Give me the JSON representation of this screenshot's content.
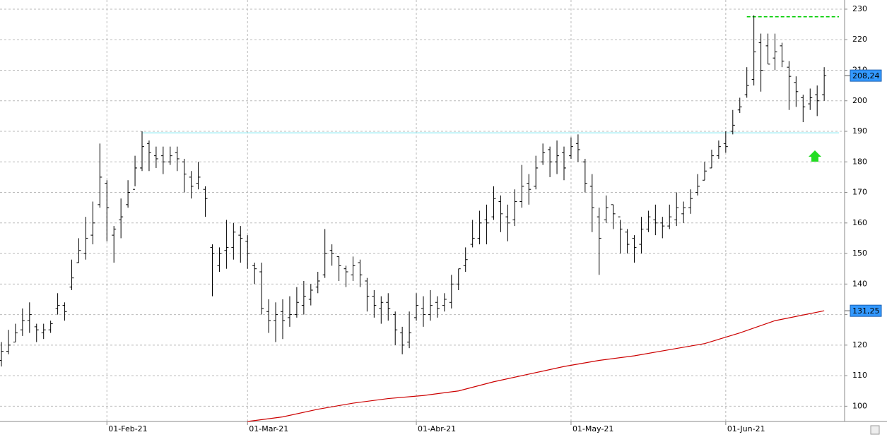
{
  "chart_data": {
    "type": "ohlc",
    "categories": [
      null,
      null,
      null,
      null,
      null,
      null,
      null,
      null,
      null,
      null,
      null,
      null,
      null,
      null,
      null,
      "01-Feb-21",
      null,
      null,
      null,
      null,
      null,
      null,
      null,
      null,
      null,
      null,
      null,
      null,
      null,
      null,
      null,
      null,
      null,
      null,
      null,
      "01-Mar-21",
      null,
      null,
      null,
      null,
      null,
      null,
      null,
      null,
      null,
      null,
      null,
      null,
      null,
      null,
      null,
      null,
      null,
      null,
      null,
      null,
      null,
      null,
      null,
      "01-Abr-21",
      null,
      null,
      null,
      null,
      null,
      null,
      null,
      null,
      null,
      null,
      null,
      null,
      null,
      null,
      null,
      null,
      null,
      null,
      null,
      null,
      null,
      "01-May-21",
      null,
      null,
      null,
      null,
      null,
      null,
      null,
      null,
      null,
      null,
      null,
      null,
      null,
      null,
      null,
      null,
      null,
      null,
      null,
      null,
      null,
      "01-Jun-21",
      null,
      null,
      null,
      null,
      null,
      null,
      null,
      null,
      null,
      null,
      null,
      null,
      null,
      null
    ],
    "open": [
      115,
      118,
      121,
      125,
      128,
      126,
      124,
      125,
      132,
      133,
      139,
      147,
      150,
      156,
      166,
      173,
      156,
      161,
      166,
      171,
      178,
      186,
      182,
      182,
      180,
      183,
      180,
      175,
      173,
      171,
      152,
      146,
      151,
      152,
      156,
      154,
      146,
      144,
      131,
      128,
      131,
      129,
      130,
      133,
      135,
      139,
      143,
      151,
      149,
      145,
      143,
      147,
      141,
      136,
      132,
      134,
      130,
      124,
      121,
      129,
      132,
      130,
      134,
      133,
      134,
      140,
      146,
      153,
      155,
      161,
      162,
      167,
      162,
      161,
      167,
      173,
      172,
      180,
      184,
      180,
      183,
      182,
      186,
      180,
      172,
      162,
      161,
      166,
      162,
      157,
      155,
      153,
      158,
      161,
      160,
      159,
      161,
      163,
      165,
      170,
      174,
      178,
      182,
      186,
      190,
      197,
      202,
      207,
      219,
      218,
      214,
      218,
      211,
      206,
      201,
      199,
      202,
      202
    ],
    "high": [
      121,
      125,
      127,
      132,
      134,
      127,
      127,
      128,
      137,
      134,
      148,
      155,
      162,
      167,
      186,
      174,
      159,
      168,
      174,
      182,
      190,
      187,
      185,
      185,
      185,
      185,
      181,
      177,
      180,
      172,
      153,
      152,
      161,
      160,
      159,
      156,
      147,
      147,
      135,
      134,
      135,
      136,
      139,
      141,
      140,
      144,
      158,
      153,
      149,
      146,
      149,
      148,
      142,
      138,
      136,
      137,
      131,
      126,
      131,
      137,
      136,
      138,
      136,
      137,
      143,
      145,
      152,
      161,
      164,
      166,
      172,
      169,
      166,
      171,
      179,
      176,
      182,
      186,
      185,
      187,
      185,
      188,
      189,
      181,
      176,
      165,
      169,
      166,
      161,
      158,
      156,
      162,
      164,
      166,
      162,
      166,
      170,
      167,
      171,
      176,
      180,
      184,
      187,
      190,
      197,
      201,
      211,
      228,
      222,
      222,
      222,
      219,
      213,
      208,
      202,
      204,
      205,
      211
    ],
    "low": [
      113,
      117,
      121,
      123,
      124,
      121,
      122,
      124,
      130,
      128,
      138,
      147,
      148,
      153,
      165,
      154,
      147,
      155,
      165,
      172,
      177,
      177,
      178,
      176,
      179,
      177,
      170,
      168,
      171,
      162,
      136,
      144,
      145,
      148,
      147,
      145,
      140,
      130,
      124,
      121,
      122,
      126,
      129,
      130,
      133,
      137,
      142,
      146,
      141,
      139,
      141,
      139,
      131,
      129,
      127,
      128,
      120,
      117,
      119,
      128,
      126,
      128,
      129,
      131,
      132,
      138,
      144,
      152,
      153,
      153,
      161,
      157,
      154,
      159,
      165,
      166,
      171,
      179,
      175,
      176,
      174,
      181,
      180,
      170,
      157,
      143,
      160,
      158,
      150,
      150,
      147,
      150,
      157,
      156,
      155,
      158,
      159,
      160,
      163,
      169,
      174,
      178,
      181,
      183,
      189,
      196,
      201,
      205,
      203,
      212,
      210,
      211,
      197,
      198,
      193,
      197,
      195,
      200
    ],
    "close": [
      118,
      120,
      124,
      128,
      130,
      125,
      125,
      127,
      133,
      131,
      142,
      151,
      155,
      160,
      175,
      165,
      158,
      162,
      170,
      178,
      185,
      183,
      181,
      180,
      182,
      181,
      176,
      172,
      175,
      168,
      150,
      150,
      152,
      157,
      155,
      150,
      145,
      132,
      128,
      130,
      128,
      130,
      134,
      136,
      138,
      141,
      150,
      150,
      146,
      144,
      146,
      143,
      136,
      133,
      134,
      132,
      125,
      120,
      124,
      133,
      130,
      133,
      132,
      135,
      140,
      145,
      148,
      155,
      160,
      160,
      168,
      163,
      160,
      167,
      172,
      171,
      178,
      183,
      180,
      182,
      178,
      185,
      184,
      173,
      165,
      155,
      165,
      163,
      158,
      153,
      152,
      158,
      162,
      160,
      159,
      162,
      165,
      165,
      168,
      172,
      177,
      182,
      185,
      185,
      192,
      198,
      205,
      216,
      210,
      212,
      216,
      213,
      208,
      203,
      198,
      201,
      200,
      208.24
    ],
    "color": "#000000",
    "last_label": "208,24",
    "ma": {
      "color": "#cc0000",
      "x": [
        35,
        40,
        45,
        50,
        55,
        60,
        65,
        70,
        75,
        80,
        85,
        90,
        95,
        100,
        105,
        110,
        117
      ],
      "values": [
        95,
        96.5,
        99,
        101,
        102.5,
        103.5,
        105,
        108,
        110.5,
        113,
        115,
        116.5,
        118.5,
        120.5,
        124,
        128,
        131.25
      ],
      "last_label": "131,25"
    },
    "levels": [
      {
        "value": 189.5,
        "start": 20,
        "color": "#7fe8f0",
        "style": "solid"
      },
      {
        "value": 227.5,
        "start": 106,
        "color": "#00cc00",
        "style": "dashed"
      }
    ],
    "ylim": [
      95,
      233
    ],
    "yticks": [
      100,
      110,
      120,
      130,
      140,
      150,
      160,
      170,
      180,
      190,
      200,
      210,
      220,
      230
    ],
    "grid": true
  }
}
